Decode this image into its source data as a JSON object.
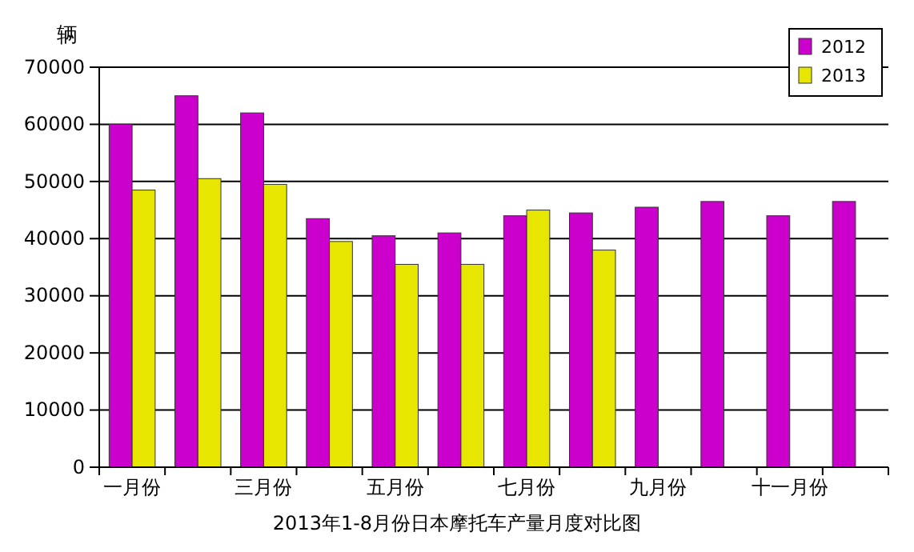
{
  "chart_data": {
    "type": "bar",
    "title": "2013年1-8月份日本摩托车产量月度对比图",
    "ylabel": "辆",
    "categories": [
      "一月份",
      null,
      "三月份",
      null,
      "五月份",
      null,
      "七月份",
      null,
      "九月份",
      null,
      "十一月份",
      null
    ],
    "series": [
      {
        "name": "2012",
        "color": "#cc00cc",
        "values": [
          60000,
          65000,
          62000,
          43500,
          40500,
          41000,
          44000,
          44500,
          45500,
          46500,
          44000,
          46500
        ]
      },
      {
        "name": "2013",
        "color": "#e6e600",
        "values": [
          48500,
          50500,
          49500,
          39500,
          35500,
          35500,
          45000,
          38000,
          null,
          null,
          null,
          null
        ]
      }
    ],
    "ylim": [
      0,
      70000
    ],
    "yticks": [
      0,
      10000,
      20000,
      30000,
      40000,
      50000,
      60000,
      70000
    ],
    "grid": "y",
    "legend": "top right"
  }
}
